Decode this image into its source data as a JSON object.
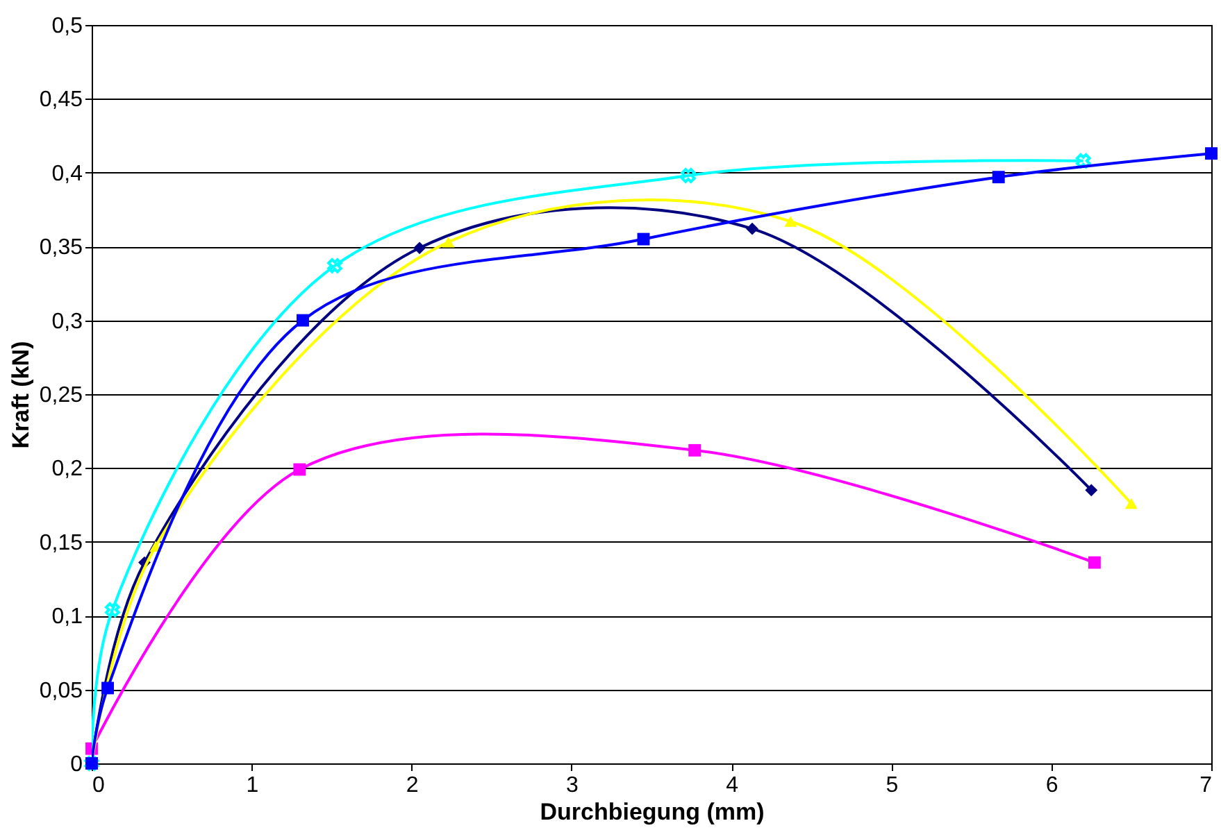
{
  "chart_data": {
    "type": "line",
    "xlabel": "Durchbiegung (mm)",
    "ylabel": "Kraft (kN)",
    "xlim": [
      0,
      7
    ],
    "xticks": [
      0,
      1,
      2,
      3,
      4,
      5,
      6,
      7
    ],
    "ylim": [
      0,
      0.5
    ],
    "yticks": [
      0,
      {
        "value": 0.05,
        "label": "0,05"
      },
      {
        "value": 0.1,
        "label": "0,1"
      },
      {
        "value": 0.15,
        "label": "0,15"
      },
      {
        "value": 0.2,
        "label": "0,2"
      },
      {
        "value": 0.25,
        "label": "0,25"
      },
      {
        "value": 0.3,
        "label": "0,3"
      },
      {
        "value": 0.35,
        "label": "0,35"
      },
      {
        "value": 0.4,
        "label": "0,4"
      },
      {
        "value": 0.45,
        "label": "0,45"
      },
      {
        "value": 0.5,
        "label": "0,5"
      }
    ],
    "grid": "y",
    "series": [
      {
        "color": "#000080",
        "marker": "diamond",
        "x": [
          0,
          0.33,
          2.05,
          4.13,
          6.25
        ],
        "values": [
          0,
          0.136,
          0.349,
          0.362,
          0.185
        ]
      },
      {
        "color": "#ff00ff",
        "marker": "square",
        "x": [
          0,
          1.3,
          3.77,
          6.27
        ],
        "values": [
          0.01,
          0.199,
          0.212,
          0.136
        ]
      },
      {
        "color": "#ffff00",
        "marker": "triangle",
        "x": [
          0,
          0.4,
          2.23,
          4.37,
          6.5
        ],
        "values": [
          0,
          0.147,
          0.353,
          0.367,
          0.176
        ]
      },
      {
        "color": "#00ffff",
        "marker": "cross",
        "x": [
          0,
          0.13,
          1.52,
          3.73,
          6.2
        ],
        "values": [
          0,
          0.104,
          0.337,
          0.398,
          0.408
        ]
      },
      {
        "color": "#0000ff",
        "marker": "square",
        "x": [
          0,
          0.1,
          1.32,
          3.45,
          5.67,
          7
        ],
        "values": [
          0,
          0.051,
          0.3,
          0.355,
          0.397,
          0.413
        ]
      }
    ]
  }
}
